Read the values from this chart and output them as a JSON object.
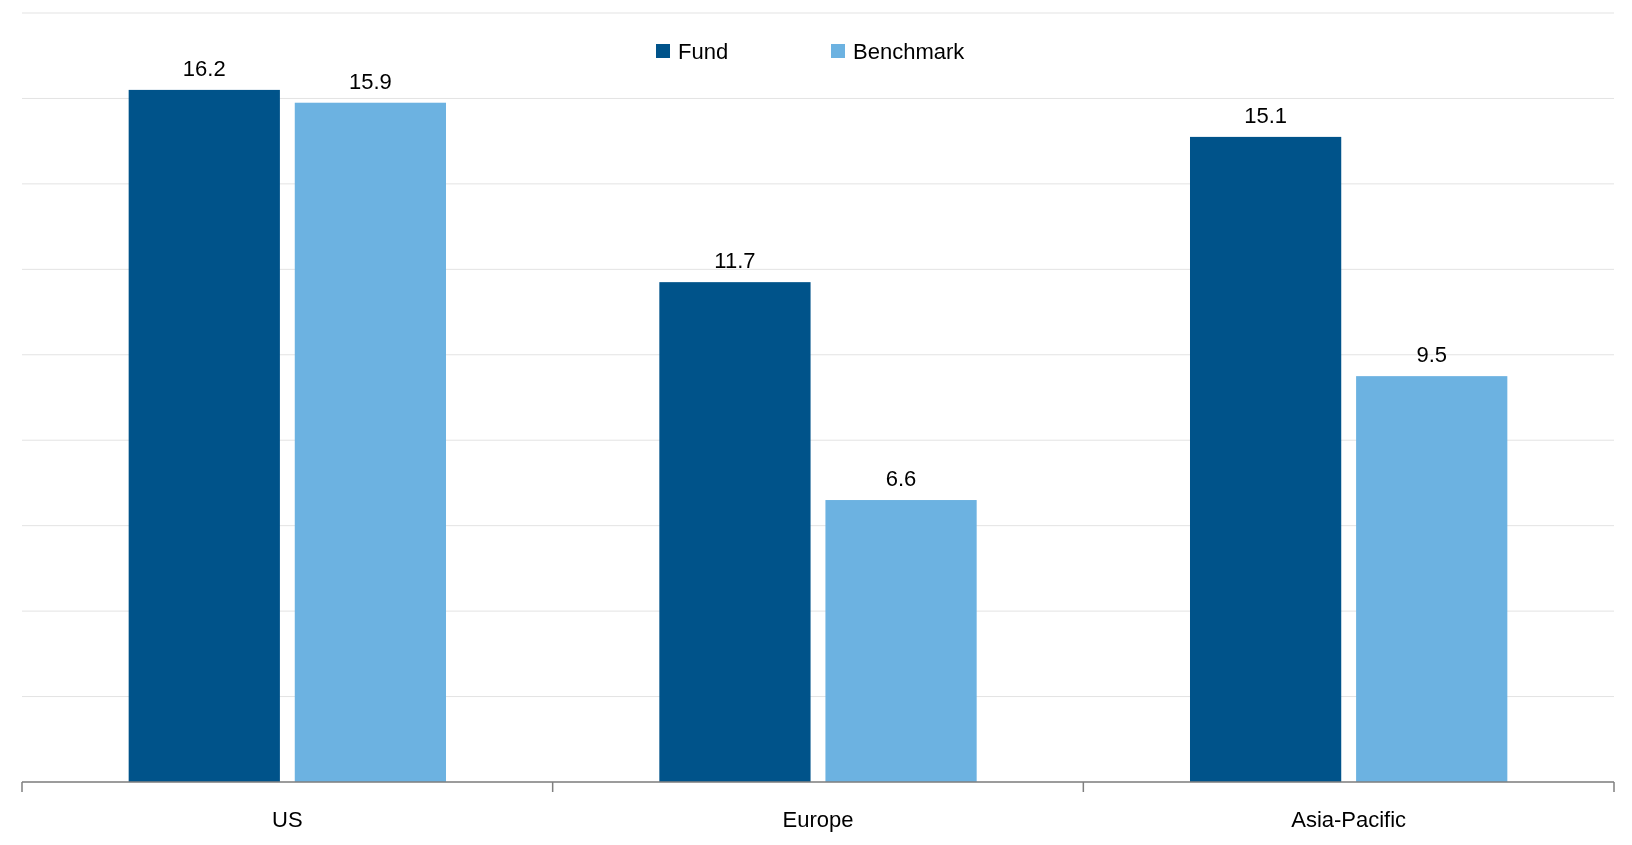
{
  "chart_data": {
    "type": "bar",
    "categories": [
      "US",
      "Europe",
      "Asia-Pacific"
    ],
    "series": [
      {
        "name": "Fund",
        "color": "#00538a",
        "values": [
          16.2,
          11.7,
          15.1
        ]
      },
      {
        "name": "Benchmark",
        "color": "#6cb2e1",
        "values": [
          15.9,
          6.6,
          9.5
        ]
      }
    ],
    "ylim": [
      0,
      18
    ],
    "yticks": [
      {
        "value": 0,
        "label": null
      },
      {
        "value": 2,
        "label": null
      },
      {
        "value": 4,
        "label": null
      },
      {
        "value": 6,
        "label": null
      },
      {
        "value": 8,
        "label": null
      },
      {
        "value": 10,
        "label": null
      },
      {
        "value": 12,
        "label": null
      },
      {
        "value": 14,
        "label": null
      },
      {
        "value": 16,
        "label": null
      },
      {
        "value": 18,
        "label": null
      }
    ],
    "tick_labels": "x",
    "grid": "y",
    "legend": "top",
    "data_labels": true
  }
}
